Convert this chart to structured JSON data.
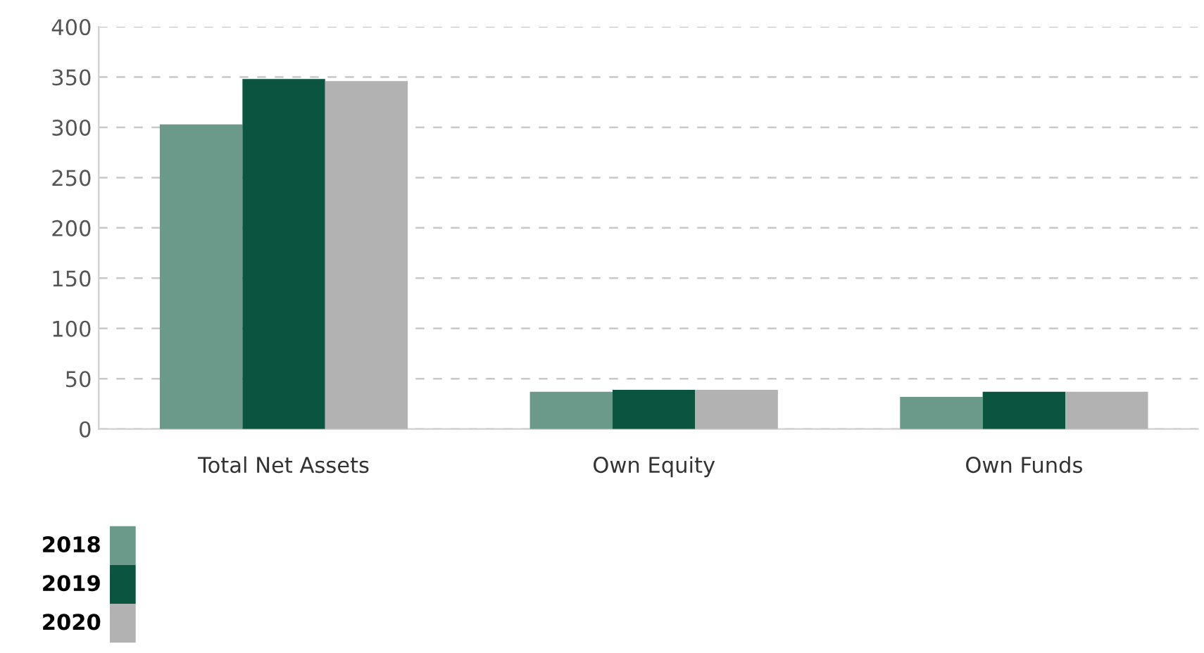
{
  "chart_data": {
    "type": "bar",
    "categories": [
      "Total Net Assets",
      "Own Equity",
      "Own Funds"
    ],
    "series": [
      {
        "name": "2018",
        "color": "#6b9a8b",
        "values": [
          303,
          37,
          32
        ]
      },
      {
        "name": "2019",
        "color": "#0b5540",
        "values": [
          348,
          39,
          37
        ]
      },
      {
        "name": "2020",
        "color": "#b2b2b2",
        "values": [
          346,
          39,
          37
        ]
      }
    ],
    "ylim": [
      0,
      400
    ],
    "yticks": [
      0,
      50,
      100,
      150,
      200,
      250,
      300,
      350,
      400
    ],
    "grid": "y",
    "legend": "bottom left"
  }
}
